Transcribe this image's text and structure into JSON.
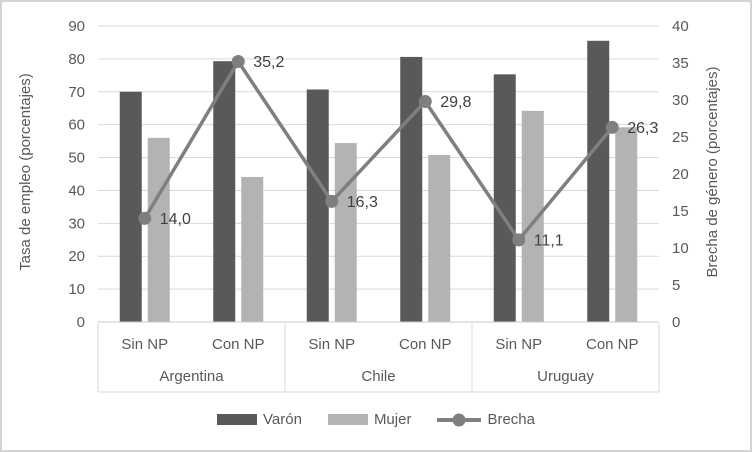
{
  "chart_data": {
    "type": "combo-bar-line",
    "group_labels": [
      "Argentina",
      "Chile",
      "Uruguay"
    ],
    "subgroup_labels": [
      "Sin NP",
      "Con NP"
    ],
    "categories": [
      "Argentina Sin NP",
      "Argentina Con NP",
      "Chile Sin NP",
      "Chile Con NP",
      "Uruguay Sin NP",
      "Uruguay Con NP"
    ],
    "series": [
      {
        "name": "Varón",
        "type": "bar",
        "axis": "left",
        "values": [
          70.0,
          79.3,
          70.7,
          80.6,
          75.3,
          85.5
        ]
      },
      {
        "name": "Mujer",
        "type": "bar",
        "axis": "left",
        "values": [
          56.0,
          44.1,
          54.4,
          50.8,
          64.2,
          59.2
        ]
      },
      {
        "name": "Brecha",
        "type": "line",
        "axis": "right",
        "values": [
          14.0,
          35.2,
          16.3,
          29.8,
          11.1,
          26.3
        ],
        "labels": [
          "14,0",
          "35,2",
          "16,3",
          "29,8",
          "11,1",
          "26,3"
        ]
      }
    ],
    "left_axis": {
      "title": "Tasa de empleo (porcentajes)",
      "min": 0,
      "max": 90,
      "step": 10,
      "ticks": [
        0,
        10,
        20,
        30,
        40,
        50,
        60,
        70,
        80,
        90
      ]
    },
    "right_axis": {
      "title": "Brecha de género (porcentajes)",
      "min": 0,
      "max": 40,
      "step": 5,
      "ticks": [
        0,
        5,
        10,
        15,
        20,
        25,
        30,
        35,
        40
      ]
    },
    "legend": [
      "Varón",
      "Mujer",
      "Brecha"
    ],
    "legend_position": "bottom",
    "grid": true,
    "colors": {
      "varon": "#595959",
      "mujer": "#b3b3b3",
      "brecha": "#7f7f7f",
      "grid": "#d9d9d9",
      "axis_line": "#c9c9c9",
      "text": "#595959",
      "data_label": "#404040",
      "frame_border": "#d4d4d4"
    }
  }
}
